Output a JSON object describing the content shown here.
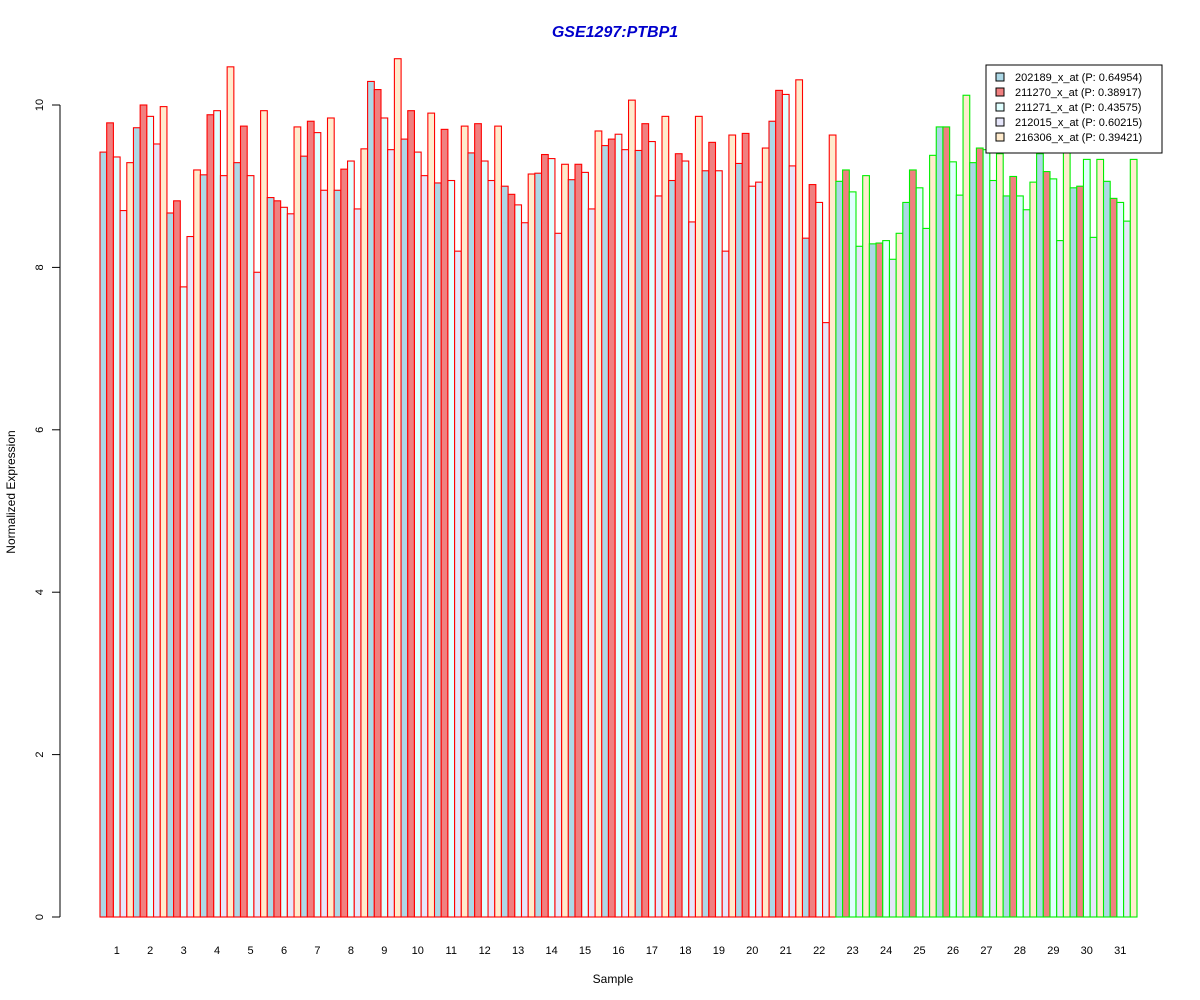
{
  "chart_data": {
    "type": "bar",
    "title": "GSE1297:PTBP1",
    "xlabel": "Sample",
    "ylabel": "Normalized Expression",
    "ylim": [
      0,
      10.6
    ],
    "yticks": [
      0,
      2,
      4,
      6,
      8,
      10
    ],
    "categories": [
      "1",
      "2",
      "3",
      "4",
      "5",
      "6",
      "7",
      "8",
      "9",
      "10",
      "11",
      "12",
      "13",
      "14",
      "15",
      "16",
      "17",
      "18",
      "19",
      "20",
      "21",
      "22",
      "23",
      "24",
      "25",
      "26",
      "27",
      "28",
      "29",
      "30",
      "31"
    ],
    "series": [
      {
        "name": "202189_x_at (P: 0.64954)",
        "fill": "#add8e6",
        "values": [
          9.42,
          9.72,
          8.67,
          9.14,
          9.29,
          8.86,
          9.37,
          8.95,
          10.29,
          9.58,
          9.04,
          9.41,
          9.0,
          9.16,
          9.08,
          9.5,
          9.44,
          9.07,
          9.19,
          9.28,
          9.8,
          8.36,
          9.06,
          8.29,
          8.8,
          9.73,
          9.29,
          8.88,
          9.4,
          8.98,
          9.06
        ]
      },
      {
        "name": "211270_x_at (P: 0.38917)",
        "fill": "#f08080",
        "values": [
          9.78,
          10.0,
          8.82,
          9.88,
          9.74,
          8.82,
          9.8,
          9.21,
          10.19,
          9.93,
          9.7,
          9.77,
          8.9,
          9.39,
          9.27,
          9.58,
          9.77,
          9.4,
          9.54,
          9.65,
          10.18,
          9.02,
          9.2,
          8.3,
          9.2,
          9.73,
          9.47,
          9.12,
          9.18,
          9.0,
          8.85
        ]
      },
      {
        "name": "211271_x_at (P: 0.43575)",
        "fill": "#e0ffff",
        "values": [
          9.36,
          9.86,
          7.76,
          9.93,
          9.13,
          8.74,
          9.66,
          9.31,
          9.84,
          9.42,
          9.07,
          9.31,
          8.77,
          9.34,
          9.17,
          9.64,
          9.55,
          9.31,
          9.19,
          9.0,
          10.13,
          8.8,
          8.93,
          8.33,
          8.98,
          9.3,
          9.45,
          8.88,
          9.09,
          9.33,
          8.8
        ]
      },
      {
        "name": "212015_x_at (P: 0.60215)",
        "fill": "#e6e6fa",
        "values": [
          8.7,
          9.52,
          8.38,
          9.13,
          7.94,
          8.66,
          8.95,
          8.72,
          9.45,
          9.13,
          8.2,
          9.07,
          8.55,
          8.42,
          8.72,
          9.45,
          8.88,
          8.56,
          8.2,
          9.05,
          9.25,
          7.32,
          8.26,
          8.1,
          8.48,
          8.89,
          9.07,
          8.71,
          8.33,
          8.37,
          8.57
        ]
      },
      {
        "name": "216306_x_at (P: 0.39421)",
        "fill": "#ffebcd",
        "values": [
          9.29,
          9.98,
          9.2,
          10.47,
          9.93,
          9.73,
          9.84,
          9.46,
          10.57,
          9.9,
          9.74,
          9.74,
          9.15,
          9.27,
          9.68,
          10.06,
          9.86,
          9.86,
          9.63,
          9.47,
          10.31,
          9.63,
          9.13,
          8.42,
          9.38,
          10.12,
          9.4,
          9.05,
          9.5,
          9.33,
          9.33
        ]
      }
    ],
    "group_colors": {
      "group_1": "#ff0000",
      "group_2": "#00ee00"
    },
    "group_1_samples": 22,
    "legend_position": "top-right",
    "grid": false
  }
}
